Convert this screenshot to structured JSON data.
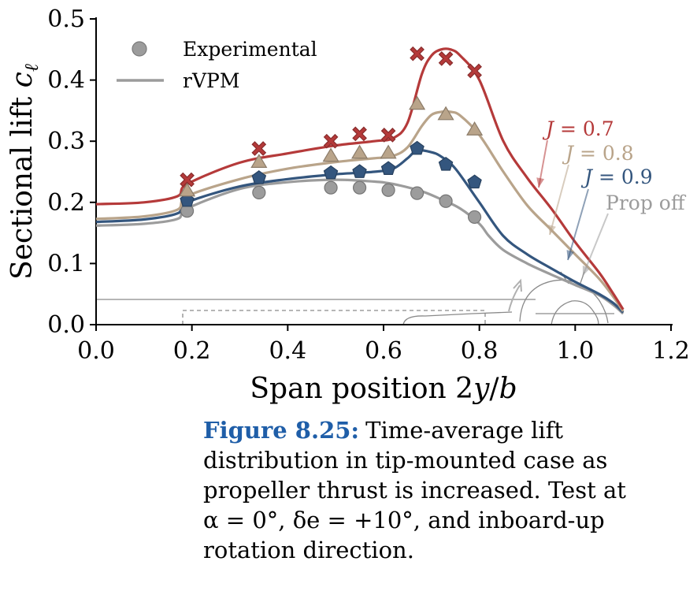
{
  "chart_data": {
    "type": "line",
    "title": "",
    "xlabel": "Span position 2y/b",
    "ylabel": "Sectional lift cℓ",
    "xlim": [
      0.0,
      1.2
    ],
    "ylim": [
      0.0,
      0.5
    ],
    "xticks": [
      "0.0",
      "0.2",
      "0.4",
      "0.6",
      "0.8",
      "1.0",
      "1.2"
    ],
    "yticks": [
      "0.0",
      "0.1",
      "0.2",
      "0.3",
      "0.4",
      "0.5"
    ],
    "grid": false,
    "legend": {
      "placement": "top-left",
      "entries": [
        {
          "label": "Experimental",
          "style": "marker"
        },
        {
          "label": "rVPM",
          "style": "line"
        }
      ]
    },
    "series": [
      {
        "name": "J = 0.7",
        "color": "#b53a3a",
        "marker": "x",
        "experimental": {
          "x": [
            0.19,
            0.34,
            0.49,
            0.55,
            0.61,
            0.67,
            0.73,
            0.79
          ],
          "y": [
            0.237,
            0.288,
            0.3,
            0.312,
            0.31,
            0.443,
            0.435,
            0.415
          ]
        },
        "rvpm": {
          "x": [
            0.0,
            0.1,
            0.17,
            0.19,
            0.3,
            0.4,
            0.5,
            0.58,
            0.62,
            0.65,
            0.68,
            0.7,
            0.72,
            0.74,
            0.76,
            0.8,
            0.85,
            0.9,
            0.95,
            1.0,
            1.05,
            1.08,
            1.1
          ],
          "y": [
            0.197,
            0.2,
            0.21,
            0.23,
            0.265,
            0.28,
            0.293,
            0.3,
            0.305,
            0.33,
            0.41,
            0.44,
            0.45,
            0.45,
            0.44,
            0.4,
            0.3,
            0.24,
            0.19,
            0.135,
            0.085,
            0.05,
            0.025
          ]
        }
      },
      {
        "name": "J = 0.8",
        "color": "#b9a48a",
        "marker": "triangle",
        "experimental": {
          "x": [
            0.19,
            0.34,
            0.49,
            0.55,
            0.61,
            0.67,
            0.73,
            0.79
          ],
          "y": [
            0.218,
            0.265,
            0.275,
            0.28,
            0.28,
            0.36,
            0.343,
            0.318
          ]
        },
        "rvpm": {
          "x": [
            0.0,
            0.1,
            0.17,
            0.19,
            0.3,
            0.4,
            0.5,
            0.58,
            0.62,
            0.65,
            0.68,
            0.7,
            0.72,
            0.74,
            0.76,
            0.8,
            0.85,
            0.9,
            0.95,
            1.0,
            1.05,
            1.08,
            1.1
          ],
          "y": [
            0.173,
            0.177,
            0.188,
            0.21,
            0.238,
            0.255,
            0.266,
            0.272,
            0.276,
            0.29,
            0.325,
            0.343,
            0.348,
            0.348,
            0.342,
            0.31,
            0.25,
            0.195,
            0.155,
            0.115,
            0.075,
            0.045,
            0.022
          ]
        }
      },
      {
        "name": "J = 0.9",
        "color": "#34567e",
        "marker": "pentagon",
        "experimental": {
          "x": [
            0.19,
            0.34,
            0.49,
            0.55,
            0.61,
            0.67,
            0.73,
            0.79
          ],
          "y": [
            0.203,
            0.24,
            0.248,
            0.25,
            0.255,
            0.288,
            0.262,
            0.233
          ]
        },
        "rvpm": {
          "x": [
            0.0,
            0.1,
            0.17,
            0.19,
            0.3,
            0.4,
            0.5,
            0.58,
            0.62,
            0.65,
            0.67,
            0.7,
            0.72,
            0.75,
            0.8,
            0.85,
            0.9,
            0.95,
            1.0,
            1.05,
            1.08,
            1.1
          ],
          "y": [
            0.168,
            0.172,
            0.182,
            0.2,
            0.226,
            0.238,
            0.246,
            0.25,
            0.255,
            0.272,
            0.285,
            0.282,
            0.275,
            0.255,
            0.2,
            0.145,
            0.115,
            0.092,
            0.07,
            0.05,
            0.035,
            0.02
          ]
        }
      },
      {
        "name": "Prop off",
        "color": "#9c9c9c",
        "marker": "circle",
        "experimental": {
          "x": [
            0.19,
            0.34,
            0.49,
            0.55,
            0.61,
            0.67,
            0.73,
            0.79
          ],
          "y": [
            0.186,
            0.216,
            0.224,
            0.224,
            0.22,
            0.215,
            0.202,
            0.176
          ]
        },
        "rvpm": {
          "x": [
            0.0,
            0.1,
            0.17,
            0.19,
            0.3,
            0.4,
            0.5,
            0.58,
            0.62,
            0.68,
            0.72,
            0.76,
            0.8,
            0.82,
            0.85,
            0.9,
            0.95,
            1.0,
            1.05,
            1.08,
            1.1
          ],
          "y": [
            0.162,
            0.165,
            0.173,
            0.19,
            0.222,
            0.233,
            0.237,
            0.234,
            0.23,
            0.218,
            0.205,
            0.19,
            0.165,
            0.145,
            0.122,
            0.1,
            0.082,
            0.065,
            0.048,
            0.032,
            0.018
          ]
        }
      }
    ]
  },
  "caption": {
    "label": "Figure 8.25:",
    "text": "Time-average lift distribution in tip-mounted case as propeller thrust is increased. Test at α = 0°, δe = +10°, and inboard-up rotation direction."
  }
}
